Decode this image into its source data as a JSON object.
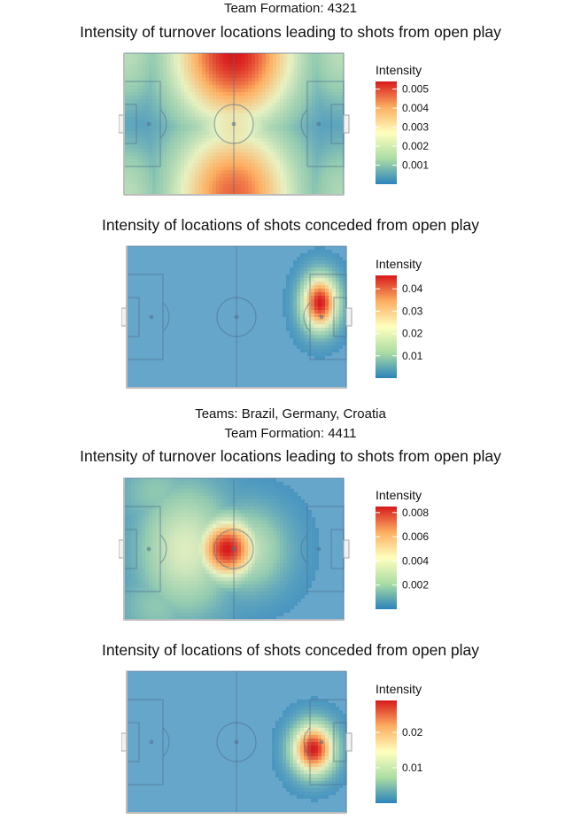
{
  "sections": [
    {
      "formation_label": "Team Formation: 4321",
      "charts": [
        {
          "title": "Intensity of turnover locations leading to shots from open play",
          "legend_title": "Intensity",
          "legend_ticks": [
            "0.005",
            "0.004",
            "0.003",
            "0.002",
            "0.001"
          ]
        },
        {
          "title": "Intensity of locations of shots conceded from open play",
          "legend_title": "Intensity",
          "legend_ticks": [
            "0.04",
            "0.03",
            "0.02",
            "0.01"
          ]
        }
      ]
    },
    {
      "teams_label": "Teams: Brazil, Germany, Croatia",
      "formation_label": "Team Formation: 4411",
      "charts": [
        {
          "title": "Intensity of turnover locations leading to shots from open play",
          "legend_title": "Intensity",
          "legend_ticks": [
            "0.008",
            "0.006",
            "0.004",
            "0.002"
          ]
        },
        {
          "title": "Intensity of locations of shots conceded from open play",
          "legend_title": "Intensity",
          "legend_ticks": [
            "0.02",
            "0.01"
          ]
        }
      ]
    }
  ],
  "chart_data": [
    {
      "type": "heatmap",
      "title": "Intensity of turnover locations leading to shots from open play",
      "group": "Team Formation: 4321",
      "legend_title": "Intensity",
      "scale_min": 0,
      "scale_max": 0.0054,
      "ticks": [
        0.001,
        0.002,
        0.003,
        0.004,
        0.005
      ],
      "palette": [
        "#2b83ba",
        "#abdda4",
        "#ffffbf",
        "#fdae61",
        "#d7191c"
      ],
      "hotspots": [
        {
          "x": 50,
          "y": 100,
          "value": 0.0054
        },
        {
          "x": 50,
          "y": 0,
          "value": 0.0047
        },
        {
          "x": 50,
          "y": 50,
          "value": 0.003
        },
        {
          "x": 0,
          "y": 100,
          "value": 0.002
        },
        {
          "x": 100,
          "y": 100,
          "value": 0.002
        },
        {
          "x": 0,
          "y": 0,
          "value": 0.002
        },
        {
          "x": 100,
          "y": 0,
          "value": 0.0018
        }
      ]
    },
    {
      "type": "heatmap",
      "title": "Intensity of locations of shots conceded from open play",
      "group": "Team Formation: 4321",
      "legend_title": "Intensity",
      "scale_min": 0,
      "scale_max": 0.046,
      "ticks": [
        0.01,
        0.02,
        0.03,
        0.04
      ],
      "palette": [
        "#2b83ba",
        "#abdda4",
        "#ffffbf",
        "#fdae61",
        "#d7191c"
      ],
      "hotspots": [
        {
          "x": 88,
          "y": 60,
          "value": 0.046
        }
      ]
    },
    {
      "type": "heatmap",
      "title": "Intensity of turnover locations leading to shots from open play",
      "group": "Team Formation: 4411",
      "legend_title": "Intensity",
      "scale_min": 0,
      "scale_max": 0.0085,
      "ticks": [
        0.002,
        0.004,
        0.006,
        0.008
      ],
      "palette": [
        "#2b83ba",
        "#abdda4",
        "#ffffbf",
        "#fdae61",
        "#d7191c"
      ],
      "hotspots": [
        {
          "x": 47,
          "y": 50,
          "value": 0.0085
        },
        {
          "x": 28,
          "y": 50,
          "value": 0.004
        },
        {
          "x": 55,
          "y": 50,
          "value": 0.0035
        },
        {
          "x": 15,
          "y": 90,
          "value": 0.002
        },
        {
          "x": 15,
          "y": 10,
          "value": 0.002
        }
      ]
    },
    {
      "type": "heatmap",
      "title": "Intensity of locations of shots conceded from open play",
      "group": "Team Formation: 4411",
      "legend_title": "Intensity",
      "scale_min": 0,
      "scale_max": 0.029,
      "ticks": [
        0.01,
        0.02
      ],
      "palette": [
        "#2b83ba",
        "#abdda4",
        "#ffffbf",
        "#fdae61",
        "#d7191c"
      ],
      "hotspots": [
        {
          "x": 85,
          "y": 45,
          "value": 0.029
        }
      ]
    }
  ]
}
